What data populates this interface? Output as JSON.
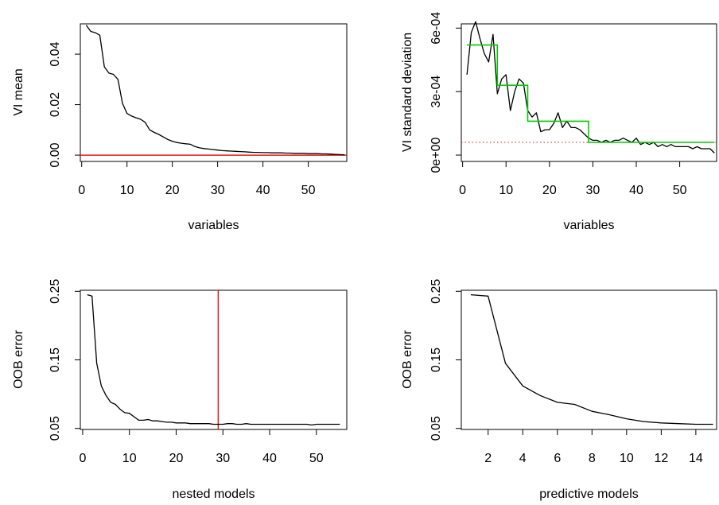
{
  "chart_data": [
    {
      "type": "line",
      "xlabel": "variables",
      "ylabel": "VI mean",
      "xlim": [
        -0.3,
        58.5
      ],
      "ylim": [
        -0.0025,
        0.052
      ],
      "x_ticks": [
        0,
        10,
        20,
        30,
        40,
        50
      ],
      "x_tick_labels": [
        "0",
        "10",
        "20",
        "30",
        "40",
        "50"
      ],
      "y_ticks": [
        0.0,
        0.02,
        0.04
      ],
      "y_tick_labels": [
        "0.00",
        "0.02",
        "0.04"
      ],
      "series": [
        {
          "color": "#000000",
          "x": [
            1,
            2,
            3,
            4,
            5,
            6,
            7,
            8,
            9,
            10,
            11,
            12,
            13,
            14,
            15,
            16,
            17,
            18,
            19,
            20,
            21,
            22,
            23,
            24,
            25,
            26,
            27,
            28,
            29,
            30,
            31,
            32,
            33,
            34,
            35,
            36,
            37,
            38,
            39,
            40,
            41,
            42,
            43,
            44,
            45,
            46,
            47,
            48,
            49,
            50,
            51,
            52,
            53,
            54,
            55,
            56,
            57,
            58
          ],
          "y": [
            0.0515,
            0.049,
            0.0485,
            0.0475,
            0.035,
            0.0325,
            0.032,
            0.03,
            0.0205,
            0.0165,
            0.0155,
            0.0148,
            0.0142,
            0.013,
            0.01,
            0.009,
            0.0082,
            0.0072,
            0.0062,
            0.0055,
            0.005,
            0.0047,
            0.0045,
            0.0043,
            0.0034,
            0.0029,
            0.0026,
            0.0024,
            0.0022,
            0.002,
            0.0018,
            0.0017,
            0.0016,
            0.0015,
            0.0014,
            0.0013,
            0.0012,
            0.0011,
            0.0011,
            0.001,
            0.001,
            0.0009,
            0.0009,
            0.0009,
            0.0008,
            0.0008,
            0.0007,
            0.0007,
            0.0007,
            0.0006,
            0.0006,
            0.0006,
            0.0005,
            0.0005,
            0.0004,
            0.0003,
            0.0002,
            0.0001
          ]
        }
      ],
      "hlines": [
        {
          "y": 0.0,
          "color": "#e31a1c"
        }
      ],
      "vlines": []
    },
    {
      "type": "line",
      "xlabel": "variables",
      "ylabel": "VI standard deviation",
      "xlim": [
        -0.3,
        58.5
      ],
      "ylim": [
        -3e-05,
        0.00062
      ],
      "x_ticks": [
        0,
        10,
        20,
        30,
        40,
        50
      ],
      "x_tick_labels": [
        "0",
        "10",
        "20",
        "30",
        "40",
        "50"
      ],
      "y_ticks": [
        0,
        0.0003,
        0.0006
      ],
      "y_tick_labels": [
        "0e+00",
        "3e-04",
        "6e-04"
      ],
      "series": [
        {
          "color": "#000000",
          "x": [
            1,
            2,
            3,
            4,
            5,
            6,
            7,
            8,
            9,
            10,
            11,
            12,
            13,
            14,
            15,
            16,
            17,
            18,
            19,
            20,
            21,
            22,
            23,
            24,
            25,
            26,
            27,
            28,
            29,
            30,
            31,
            32,
            33,
            34,
            35,
            36,
            37,
            38,
            39,
            40,
            41,
            42,
            43,
            44,
            45,
            46,
            47,
            48,
            49,
            50,
            51,
            52,
            53,
            54,
            55,
            56,
            57,
            58
          ],
          "y": [
            0.00038,
            0.00058,
            0.00063,
            0.00055,
            0.00048,
            0.00044,
            0.00057,
            0.00029,
            0.00036,
            0.00038,
            0.00021,
            0.0003,
            0.00036,
            0.00034,
            0.00021,
            0.00018,
            0.0002,
            0.00011,
            0.00012,
            0.00012,
            0.00015,
            0.0002,
            0.00013,
            0.00016,
            0.00013,
            0.00013,
            0.00012,
            0.0001,
            8e-05,
            7e-05,
            7e-05,
            6e-05,
            7e-05,
            6e-05,
            7e-05,
            7e-05,
            8e-05,
            7e-05,
            6e-05,
            8e-05,
            5e-05,
            6e-05,
            5e-05,
            6e-05,
            4e-05,
            5e-05,
            4e-05,
            5e-05,
            4e-05,
            4e-05,
            4e-05,
            4e-05,
            3e-05,
            4e-05,
            3e-05,
            3e-05,
            3e-05,
            1e-05
          ]
        },
        {
          "color": "#00cc00",
          "step": true,
          "x": [
            1,
            8,
            8,
            15,
            15,
            29,
            29,
            58
          ],
          "y": [
            0.00052,
            0.00052,
            0.00033,
            0.00033,
            0.00016,
            0.00016,
            6e-05,
            6e-05
          ]
        }
      ],
      "hlines": [
        {
          "y": 6e-05,
          "color": "#e31a1c",
          "dotted": true
        }
      ],
      "vlines": []
    },
    {
      "type": "line",
      "xlabel": "nested models",
      "ylabel": "OOB error",
      "xlim": [
        -0.5,
        56.5
      ],
      "ylim": [
        0.0485,
        0.2515
      ],
      "x_ticks": [
        0,
        10,
        20,
        30,
        40,
        50
      ],
      "x_tick_labels": [
        "0",
        "10",
        "20",
        "30",
        "40",
        "50"
      ],
      "y_ticks": [
        0.05,
        0.15,
        0.25
      ],
      "y_tick_labels": [
        "0.05",
        "0.15",
        "0.25"
      ],
      "series": [
        {
          "color": "#000000",
          "x": [
            1,
            2,
            3,
            4,
            5,
            6,
            7,
            8,
            9,
            10,
            11,
            12,
            13,
            14,
            15,
            16,
            17,
            18,
            19,
            20,
            21,
            22,
            23,
            24,
            25,
            26,
            27,
            28,
            29,
            30,
            31,
            32,
            33,
            34,
            35,
            36,
            37,
            38,
            39,
            40,
            41,
            42,
            43,
            44,
            45,
            46,
            47,
            48,
            49,
            50,
            51,
            52,
            53,
            54,
            55
          ],
          "y": [
            0.245,
            0.243,
            0.145,
            0.112,
            0.098,
            0.088,
            0.085,
            0.078,
            0.073,
            0.072,
            0.067,
            0.062,
            0.062,
            0.063,
            0.061,
            0.061,
            0.06,
            0.059,
            0.059,
            0.058,
            0.058,
            0.058,
            0.057,
            0.057,
            0.057,
            0.057,
            0.057,
            0.056,
            0.056,
            0.056,
            0.057,
            0.057,
            0.056,
            0.056,
            0.057,
            0.056,
            0.056,
            0.056,
            0.056,
            0.056,
            0.056,
            0.056,
            0.056,
            0.056,
            0.056,
            0.056,
            0.056,
            0.056,
            0.055,
            0.056,
            0.056,
            0.056,
            0.056,
            0.056,
            0.056
          ]
        }
      ],
      "hlines": [],
      "vlines": [
        {
          "x": 29,
          "color": "#e31a1c"
        }
      ]
    },
    {
      "type": "line",
      "xlabel": "predictive models",
      "ylabel": "OOB error",
      "xlim": [
        0.45,
        15.2
      ],
      "ylim": [
        0.0485,
        0.2515
      ],
      "x_ticks": [
        2,
        4,
        6,
        8,
        10,
        12,
        14
      ],
      "x_tick_labels": [
        "2",
        "4",
        "6",
        "8",
        "10",
        "12",
        "14"
      ],
      "y_ticks": [
        0.05,
        0.15,
        0.25
      ],
      "y_tick_labels": [
        "0.05",
        "0.15",
        "0.25"
      ],
      "series": [
        {
          "color": "#000000",
          "x": [
            1,
            2,
            3,
            4,
            5,
            6,
            7,
            8,
            9,
            10,
            11,
            12,
            13,
            14,
            15
          ],
          "y": [
            0.245,
            0.243,
            0.145,
            0.112,
            0.098,
            0.088,
            0.085,
            0.075,
            0.07,
            0.064,
            0.06,
            0.058,
            0.057,
            0.056,
            0.056
          ]
        }
      ],
      "hlines": [],
      "vlines": []
    }
  ]
}
